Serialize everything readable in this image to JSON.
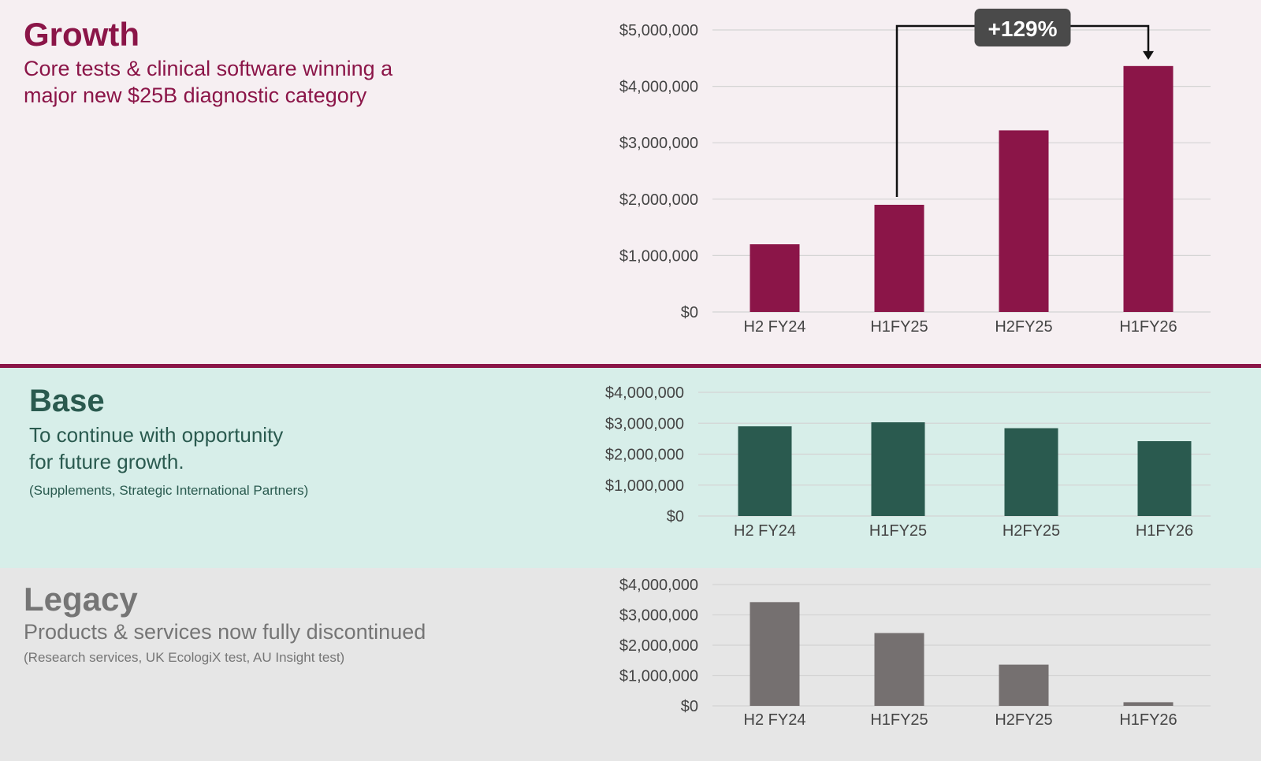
{
  "sections": {
    "growth": {
      "title": "Growth",
      "subtitle": "Core tests & clinical software winning a major new $25B diagnostic category",
      "accent_color": "#8b1548"
    },
    "base": {
      "title": "Base",
      "subtitle_line1": "To continue with opportunity",
      "subtitle_line2": "for future growth.",
      "note": "(Supplements, Strategic International Partners)",
      "accent_color": "#2a5a4f"
    },
    "legacy": {
      "title": "Legacy",
      "subtitle": "Products & services now fully discontinued",
      "note": "(Research services, UK EcologiX test, AU Insight test)",
      "accent_color": "#757575"
    }
  },
  "chart_data": [
    {
      "id": "growth",
      "type": "bar",
      "categories": [
        "H2 FY24",
        "H1FY25",
        "H2FY25",
        "H1FY26"
      ],
      "values": [
        1200000,
        1900000,
        3220000,
        4360000
      ],
      "ylim": [
        0,
        5000000
      ],
      "yticks": [
        0,
        1000000,
        2000000,
        3000000,
        4000000,
        5000000
      ],
      "ytick_labels": [
        "$0",
        "$1,000,000",
        "$2,000,000",
        "$3,000,000",
        "$4,000,000",
        "$5,000,000"
      ],
      "grid": true,
      "bar_color": "#8b1548",
      "annotation": {
        "text": "+129%",
        "from_category": "H1FY25",
        "to_category": "H1FY26"
      }
    },
    {
      "id": "base",
      "type": "bar",
      "categories": [
        "H2 FY24",
        "H1FY25",
        "H2FY25",
        "H1FY26"
      ],
      "values": [
        2900000,
        3030000,
        2840000,
        2420000
      ],
      "ylim": [
        0,
        4000000
      ],
      "yticks": [
        0,
        1000000,
        2000000,
        3000000,
        4000000
      ],
      "ytick_labels": [
        "$0",
        "$1,000,000",
        "$2,000,000",
        "$3,000,000",
        "$4,000,000"
      ],
      "grid": true,
      "bar_color": "#2a5a4f"
    },
    {
      "id": "legacy",
      "type": "bar",
      "categories": [
        "H2 FY24",
        "H1FY25",
        "H2FY25",
        "H1FY26"
      ],
      "values": [
        3420000,
        2400000,
        1360000,
        120000
      ],
      "ylim": [
        0,
        4000000
      ],
      "yticks": [
        0,
        1000000,
        2000000,
        3000000,
        4000000
      ],
      "ytick_labels": [
        "$0",
        "$1,000,000",
        "$2,000,000",
        "$3,000,000",
        "$4,000,000"
      ],
      "grid": true,
      "bar_color": "#757070"
    }
  ]
}
